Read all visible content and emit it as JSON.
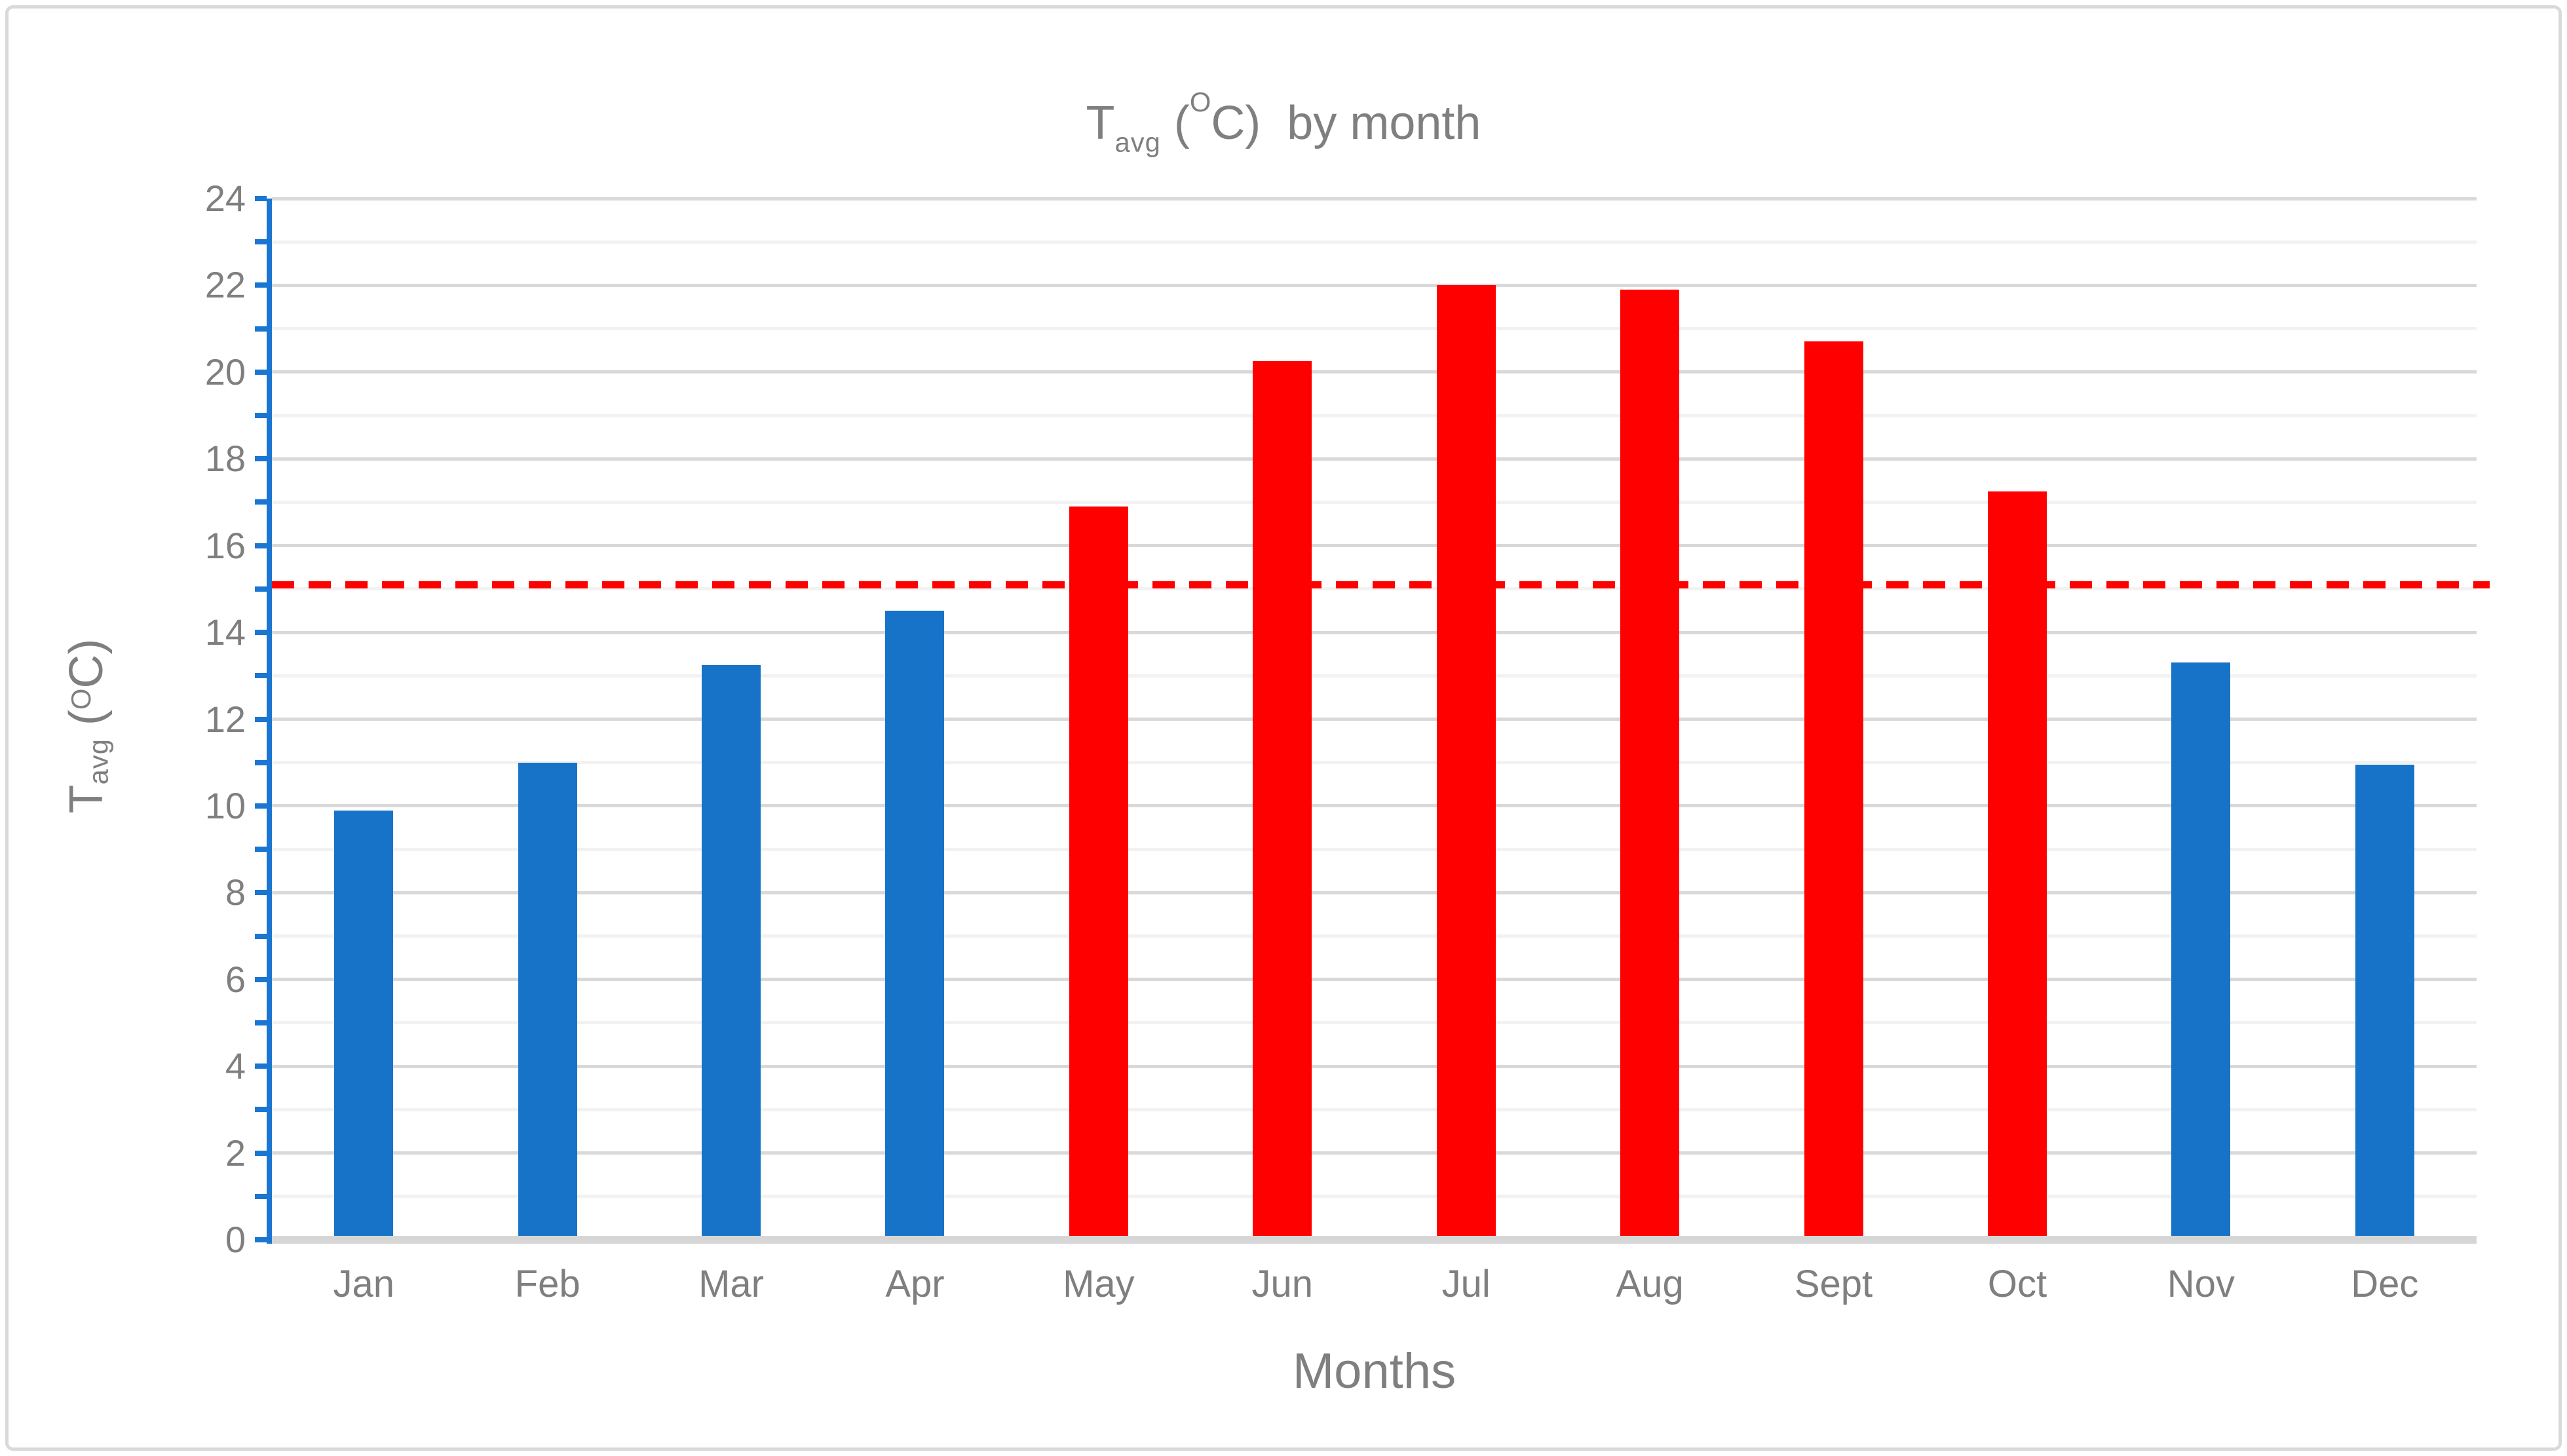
{
  "figure": {
    "background": "#FFFFFF",
    "border_color": "#D9D9D9"
  },
  "chart_data": {
    "type": "bar",
    "title": "Tavg (OC)  by month",
    "title_parts": {
      "base": "T",
      "sub": "avg",
      "pre": " (",
      "sup": "O",
      "post": "C)",
      "suffix": "  by month"
    },
    "xlabel": "Months",
    "ylabel": "Tavg (OC)",
    "ylabel_parts": {
      "base": "T",
      "sub": "avg",
      "pre": " (",
      "sup": "O",
      "post": "C)"
    },
    "categories": [
      "Jan",
      "Feb",
      "Mar",
      "Apr",
      "May",
      "Jun",
      "Jul",
      "Aug",
      "Sept",
      "Oct",
      "Nov",
      "Dec"
    ],
    "values": [
      9.9,
      11.0,
      13.25,
      14.5,
      16.9,
      20.25,
      22.0,
      21.9,
      20.7,
      17.25,
      13.3,
      10.95
    ],
    "bar_colors": [
      "#1673C8",
      "#1673C8",
      "#1673C8",
      "#1673C8",
      "#FF0000",
      "#FF0000",
      "#FF0000",
      "#FF0000",
      "#FF0000",
      "#FF0000",
      "#1673C8",
      "#1673C8"
    ],
    "ylim": [
      0,
      24
    ],
    "ytick_step": 2,
    "ytick_labels": [
      "0",
      "2",
      "4",
      "6",
      "8",
      "10",
      "12",
      "14",
      "16",
      "18",
      "20",
      "22",
      "24"
    ],
    "minor_gridline_step": 1,
    "grid": true,
    "legend": false,
    "reference_line": {
      "value": 15.1,
      "style": "dashed",
      "color": "#FF0000"
    },
    "colors": {
      "bar_cold": "#1673C8",
      "bar_warm": "#FF0000",
      "gridline_major": "#D9D9D9",
      "gridline_minor": "#F2F2F2",
      "y_axis_line": "#1B76D2",
      "x_axis_line": "#D6D6D6",
      "text": "#7F7F7F",
      "reference_line": "#FF0000"
    }
  }
}
